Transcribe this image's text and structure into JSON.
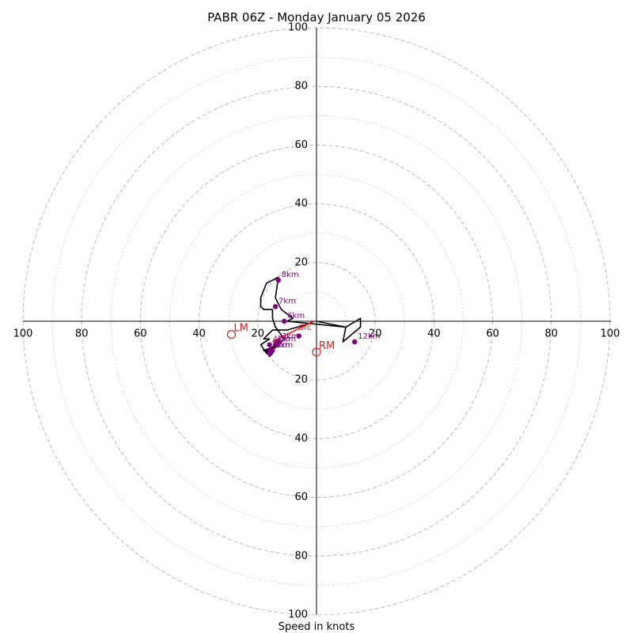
{
  "chart_data": {
    "type": "scatter",
    "title": "PABR 06Z - Monday January 05 2026",
    "xlabel": "Speed in knots",
    "ylabel": "",
    "xlim": [
      -100,
      100
    ],
    "ylim": [
      -100,
      100
    ],
    "grid": true,
    "rings_dashed": [
      20,
      40,
      60,
      80,
      100
    ],
    "rings_dotted": [
      10,
      30,
      50,
      70,
      90
    ],
    "ticks": {
      "left": [
        "100",
        "80",
        "60",
        "40",
        "20"
      ],
      "right": [
        "20",
        "40",
        "60",
        "80",
        "100"
      ],
      "top": [
        "20",
        "40",
        "60",
        "80",
        "100"
      ],
      "bottom": [
        "20",
        "40",
        "60",
        "80",
        "100"
      ]
    },
    "hodograph": {
      "color": "#000000",
      "u": [
        -1,
        -3,
        -10,
        -14,
        -15,
        -18,
        -16,
        -19,
        -17,
        -15,
        -14,
        -13,
        -18,
        -15,
        -15,
        -16,
        -17,
        -14,
        -11,
        -14,
        -15,
        -15,
        -18,
        -19,
        -19,
        -17,
        -13,
        -14,
        -12,
        -8,
        -10,
        10,
        9,
        15,
        15,
        10,
        0
      ],
      "v": [
        0,
        -1,
        -3,
        -3,
        -3,
        -6,
        -6,
        -8,
        -11,
        -9,
        -7,
        -8,
        -10,
        -11,
        -11,
        -12,
        -10,
        -9,
        -6,
        -2,
        1,
        4,
        4,
        5,
        8,
        13,
        15,
        8,
        4,
        1,
        0,
        -2,
        -7,
        -2,
        1,
        -2,
        0
      ]
    },
    "height_markers": [
      {
        "label": "8km",
        "u": -13,
        "v": 14
      },
      {
        "label": "7km",
        "u": -14,
        "v": 5
      },
      {
        "label": "6km",
        "u": -11,
        "v": 0
      },
      {
        "label": "4km",
        "u": -16,
        "v": -8
      },
      {
        "label": "3km",
        "u": -13,
        "v": -7
      },
      {
        "label": "2km",
        "u": -14,
        "v": -8
      },
      {
        "label": "1km",
        "u": -15,
        "v": -10
      },
      {
        "label": "5km",
        "u": -16,
        "v": -10
      },
      {
        "label": "",
        "u": -16,
        "v": -11
      },
      {
        "label": "",
        "u": -6,
        "v": -5
      },
      {
        "label": "12km",
        "u": 13,
        "v": -7
      }
    ],
    "storm_motion": [
      {
        "label": "LM",
        "u": -29,
        "v": -4.5
      },
      {
        "label": "RM",
        "u": 0,
        "v": -10.5
      }
    ],
    "shear_vector": {
      "label": "Src",
      "u0": -1,
      "v0": 0,
      "u1": -15,
      "v1": -7,
      "color": "#ee1111"
    },
    "colors": {
      "rings": "#bbbbbb",
      "markers": "#800080",
      "storm": "#cc2222"
    }
  }
}
